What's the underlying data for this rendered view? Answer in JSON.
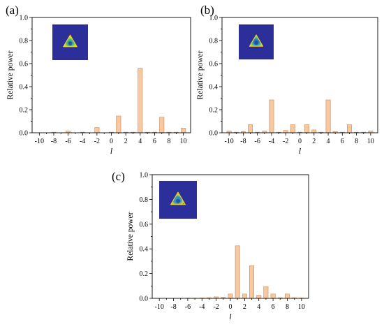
{
  "chart_data": [
    {
      "type": "bar",
      "panel": "(a)",
      "xlabel": "l",
      "ylabel": "Relative power",
      "xlim": [
        -11,
        11
      ],
      "ylim": [
        0,
        1.0
      ],
      "xticks": [
        "-10",
        "-8",
        "-6",
        "-4",
        "-2",
        "0",
        "2",
        "4",
        "6",
        "8",
        "10"
      ],
      "yticks": [
        "0.0",
        "0.2",
        "0.4",
        "0.6",
        "0.8",
        "1.0"
      ],
      "x": [
        -10,
        -9,
        -8,
        -7,
        -6,
        -5,
        -4,
        -3,
        -2,
        -1,
        0,
        1,
        2,
        3,
        4,
        5,
        6,
        7,
        8,
        9,
        10
      ],
      "values": [
        0.0,
        0.0,
        0.005,
        0.0,
        0.015,
        0.0,
        0.005,
        0.0,
        0.045,
        0.0,
        0.005,
        0.145,
        0.005,
        0.005,
        0.56,
        0.005,
        0.005,
        0.135,
        0.005,
        0.005,
        0.04
      ],
      "inset": "triangle-beam-a",
      "grid": false
    },
    {
      "type": "bar",
      "panel": "(b)",
      "xlabel": "l",
      "ylabel": "Relative power",
      "xlim": [
        -11,
        11
      ],
      "ylim": [
        0,
        1.0
      ],
      "xticks": [
        "-10",
        "-8",
        "-6",
        "-4",
        "-2",
        "0",
        "2",
        "4",
        "6",
        "8",
        "10"
      ],
      "yticks": [
        "0.0",
        "0.2",
        "0.4",
        "0.6",
        "0.8",
        "1.0"
      ],
      "x": [
        -10,
        -9,
        -8,
        -7,
        -6,
        -5,
        -4,
        -3,
        -2,
        -1,
        0,
        1,
        2,
        3,
        4,
        5,
        6,
        7,
        8,
        9,
        10
      ],
      "values": [
        0.015,
        0.005,
        0.01,
        0.07,
        0.005,
        0.015,
        0.285,
        0.005,
        0.02,
        0.07,
        0.005,
        0.07,
        0.025,
        0.005,
        0.285,
        0.01,
        0.005,
        0.07,
        0.005,
        0.005,
        0.015
      ],
      "inset": "triangle-beam-b",
      "grid": false
    },
    {
      "type": "bar",
      "panel": "(c)",
      "xlabel": "l",
      "ylabel": "Relative power",
      "xlim": [
        -11,
        11
      ],
      "ylim": [
        0,
        1.0
      ],
      "xticks": [
        "-10",
        "-8",
        "-6",
        "-4",
        "-2",
        "0",
        "2",
        "4",
        "6",
        "8",
        "10"
      ],
      "yticks": [
        "0.0",
        "0.2",
        "0.4",
        "0.6",
        "0.8",
        "1.0"
      ],
      "x": [
        -10,
        -9,
        -8,
        -7,
        -6,
        -5,
        -4,
        -3,
        -2,
        -1,
        0,
        1,
        2,
        3,
        4,
        5,
        6,
        7,
        8,
        9,
        10
      ],
      "values": [
        0.0,
        0.0,
        0.0,
        0.0,
        0.002,
        0.002,
        0.003,
        0.005,
        0.012,
        0.008,
        0.035,
        0.425,
        0.035,
        0.265,
        0.025,
        0.095,
        0.035,
        0.005,
        0.035,
        0.005,
        0.003
      ],
      "inset": "triangle-beam-c",
      "grid": false
    }
  ]
}
